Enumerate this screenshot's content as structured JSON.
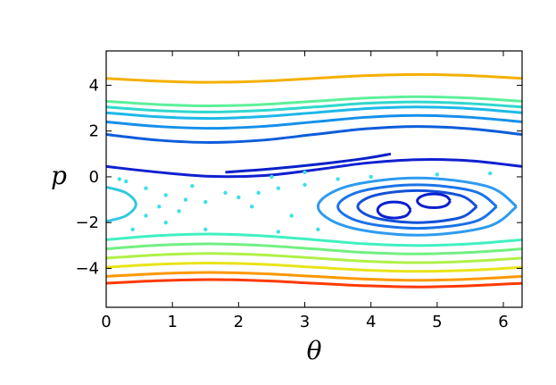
{
  "chart_data": {
    "type": "line",
    "x_label": "θ",
    "y_label": "p",
    "xlim": [
      0,
      6.283
    ],
    "ylim": [
      -5.7,
      5.5
    ],
    "xticks": [
      0,
      1,
      2,
      3,
      4,
      5,
      6
    ],
    "yticks": [
      {
        "value": -4,
        "label": "−4"
      },
      {
        "value": -2,
        "label": "−2"
      },
      0,
      2,
      4
    ],
    "series": [
      {
        "color": "#f5b000",
        "x": [
          0,
          0.785,
          1.571,
          2.356,
          3.142,
          3.927,
          4.712,
          5.498,
          6.283
        ],
        "values": [
          4.3,
          4.18,
          4.13,
          4.18,
          4.3,
          4.42,
          4.47,
          4.42,
          4.3
        ]
      },
      {
        "color": "#5cf09a",
        "x": [
          0,
          0.785,
          1.571,
          2.356,
          3.142,
          3.927,
          4.712,
          5.498,
          6.283
        ],
        "values": [
          3.3,
          3.16,
          3.1,
          3.16,
          3.3,
          3.44,
          3.5,
          3.44,
          3.3
        ]
      },
      {
        "color": "#2ed8cc",
        "x": [
          0,
          0.785,
          1.571,
          2.356,
          3.142,
          3.927,
          4.712,
          5.498,
          6.283
        ],
        "values": [
          3.05,
          2.89,
          2.83,
          2.9,
          3.05,
          3.21,
          3.27,
          3.2,
          3.05
        ]
      },
      {
        "color": "#1cb8e8",
        "x": [
          0,
          0.785,
          1.571,
          2.356,
          3.142,
          3.927,
          4.712,
          5.498,
          6.283
        ],
        "values": [
          2.8,
          2.62,
          2.55,
          2.63,
          2.8,
          2.98,
          3.05,
          2.98,
          2.8
        ]
      },
      {
        "color": "#1490ea",
        "x": [
          0,
          0.785,
          1.571,
          2.356,
          3.142,
          3.927,
          4.712,
          5.498,
          6.283
        ],
        "values": [
          2.4,
          2.2,
          2.12,
          2.2,
          2.4,
          2.6,
          2.68,
          2.6,
          2.4
        ]
      },
      {
        "color": "#0b5cdb",
        "x": [
          0,
          0.785,
          1.571,
          2.356,
          3.142,
          3.927,
          4.712,
          5.498,
          6.283
        ],
        "values": [
          1.85,
          1.6,
          1.5,
          1.6,
          1.85,
          2.1,
          2.2,
          2.1,
          1.85
        ]
      },
      {
        "color": "#1020d0",
        "x": [
          0,
          0.785,
          1.571,
          2.356,
          3.142,
          3.927,
          4.712,
          5.498,
          6.283
        ],
        "values": [
          0.45,
          0.2,
          0.02,
          0.05,
          0.3,
          0.6,
          0.75,
          0.7,
          0.45
        ]
      },
      {
        "color": "#0a20c8",
        "x": [
          1.8,
          2.5,
          3.2,
          3.9,
          4.3
        ],
        "values": [
          0.2,
          0.35,
          0.55,
          0.8,
          1.0
        ]
      },
      {
        "color": "#40f0c0",
        "x": [
          0,
          0.785,
          1.571,
          2.356,
          3.142,
          3.927,
          4.712,
          5.498,
          6.283
        ],
        "values": [
          -2.75,
          -2.57,
          -2.5,
          -2.58,
          -2.75,
          -2.93,
          -3.0,
          -2.93,
          -2.75
        ]
      },
      {
        "color": "#70f080",
        "x": [
          0,
          0.785,
          1.571,
          2.356,
          3.142,
          3.927,
          4.712,
          5.498,
          6.283
        ],
        "values": [
          -3.15,
          -2.99,
          -2.93,
          -3.0,
          -3.15,
          -3.31,
          -3.37,
          -3.3,
          -3.15
        ]
      },
      {
        "color": "#b0f048",
        "x": [
          0,
          0.785,
          1.571,
          2.356,
          3.142,
          3.927,
          4.712,
          5.498,
          6.283
        ],
        "values": [
          -3.55,
          -3.41,
          -3.35,
          -3.41,
          -3.55,
          -3.69,
          -3.75,
          -3.69,
          -3.55
        ]
      },
      {
        "color": "#e8e418",
        "x": [
          0,
          0.785,
          1.571,
          2.356,
          3.142,
          3.927,
          4.712,
          5.498,
          6.283
        ],
        "values": [
          -3.95,
          -3.82,
          -3.77,
          -3.82,
          -3.95,
          -4.08,
          -4.13,
          -4.08,
          -3.95
        ]
      },
      {
        "color": "#ff9800",
        "x": [
          0,
          0.785,
          1.571,
          2.356,
          3.142,
          3.927,
          4.712,
          5.498,
          6.283
        ],
        "values": [
          -4.35,
          -4.23,
          -4.18,
          -4.23,
          -4.35,
          -4.47,
          -4.52,
          -4.47,
          -4.35
        ]
      },
      {
        "color": "#ff3a00",
        "x": [
          0,
          0.785,
          1.571,
          2.356,
          3.142,
          3.927,
          4.712,
          5.498,
          6.283
        ],
        "values": [
          -4.65,
          -4.54,
          -4.49,
          -4.54,
          -4.65,
          -4.76,
          -4.81,
          -4.76,
          -4.65
        ]
      },
      {
        "color": "#2e9bf0",
        "x": [
          6.2,
          5.76,
          4.7,
          3.64,
          3.2,
          3.64,
          4.7,
          5.76,
          6.2
        ],
        "values": [
          -1.3,
          -0.42,
          -0.05,
          -0.42,
          -1.3,
          -2.18,
          -2.55,
          -2.18,
          -1.3
        ]
      },
      {
        "color": "#1a73e8",
        "x": [
          5.9,
          5.55,
          4.7,
          3.85,
          3.5,
          3.85,
          4.7,
          5.55,
          5.9
        ],
        "values": [
          -1.3,
          -0.63,
          -0.35,
          -0.63,
          -1.3,
          -1.97,
          -2.25,
          -1.97,
          -1.3
        ]
      },
      {
        "color": "#1250d8",
        "x": [
          5.6,
          5.34,
          4.7,
          4.06,
          3.8,
          4.06,
          4.7,
          5.34,
          5.6
        ],
        "values": [
          -1.3,
          -0.81,
          -0.6,
          -0.81,
          -1.3,
          -1.79,
          -2.0,
          -1.79,
          -1.3
        ]
      },
      {
        "color": "#0a1fd0",
        "x": [
          4.6,
          4.53,
          4.35,
          4.17,
          4.1,
          4.17,
          4.35,
          4.53,
          4.6
        ],
        "values": [
          -1.45,
          -1.2,
          -1.1,
          -1.2,
          -1.45,
          -1.7,
          -1.8,
          -1.7,
          -1.45
        ]
      },
      {
        "color": "#0a1fd0",
        "x": [
          5.2,
          5.13,
          4.95,
          4.77,
          4.7,
          4.77,
          4.95,
          5.13,
          5.2
        ],
        "values": [
          -1.05,
          -0.84,
          -0.75,
          -0.84,
          -1.05,
          -1.26,
          -1.35,
          -1.26,
          -1.05
        ]
      },
      {
        "color": "#30c8e0",
        "x": [
          0,
          0.3,
          0.45,
          0.3,
          0
        ],
        "values": [
          -0.45,
          -0.7,
          -1.2,
          -1.7,
          -1.95
        ]
      },
      {
        "color": "#3ce0e8",
        "style": "points",
        "x": [
          0.3,
          0.6,
          0.9,
          1.2,
          1.5,
          0.8,
          1.1,
          0.9,
          2.0,
          2.3,
          2.6,
          3.0,
          3.5,
          4.0,
          2.2,
          2.8,
          3.2,
          2.6,
          1.5,
          0.4,
          5.0,
          5.8,
          2.5,
          3.0,
          0.2,
          1.3,
          1.8,
          0.6
        ],
        "values": [
          -0.2,
          -0.5,
          -0.8,
          -1.0,
          -1.1,
          -1.3,
          -1.5,
          -2.0,
          -0.9,
          -0.7,
          -0.5,
          -0.35,
          -0.1,
          0.0,
          -1.3,
          -1.7,
          -2.3,
          -2.4,
          -2.3,
          -2.3,
          0.1,
          0.15,
          0.0,
          0.2,
          -0.1,
          -0.4,
          -0.7,
          -1.7
        ]
      }
    ]
  }
}
